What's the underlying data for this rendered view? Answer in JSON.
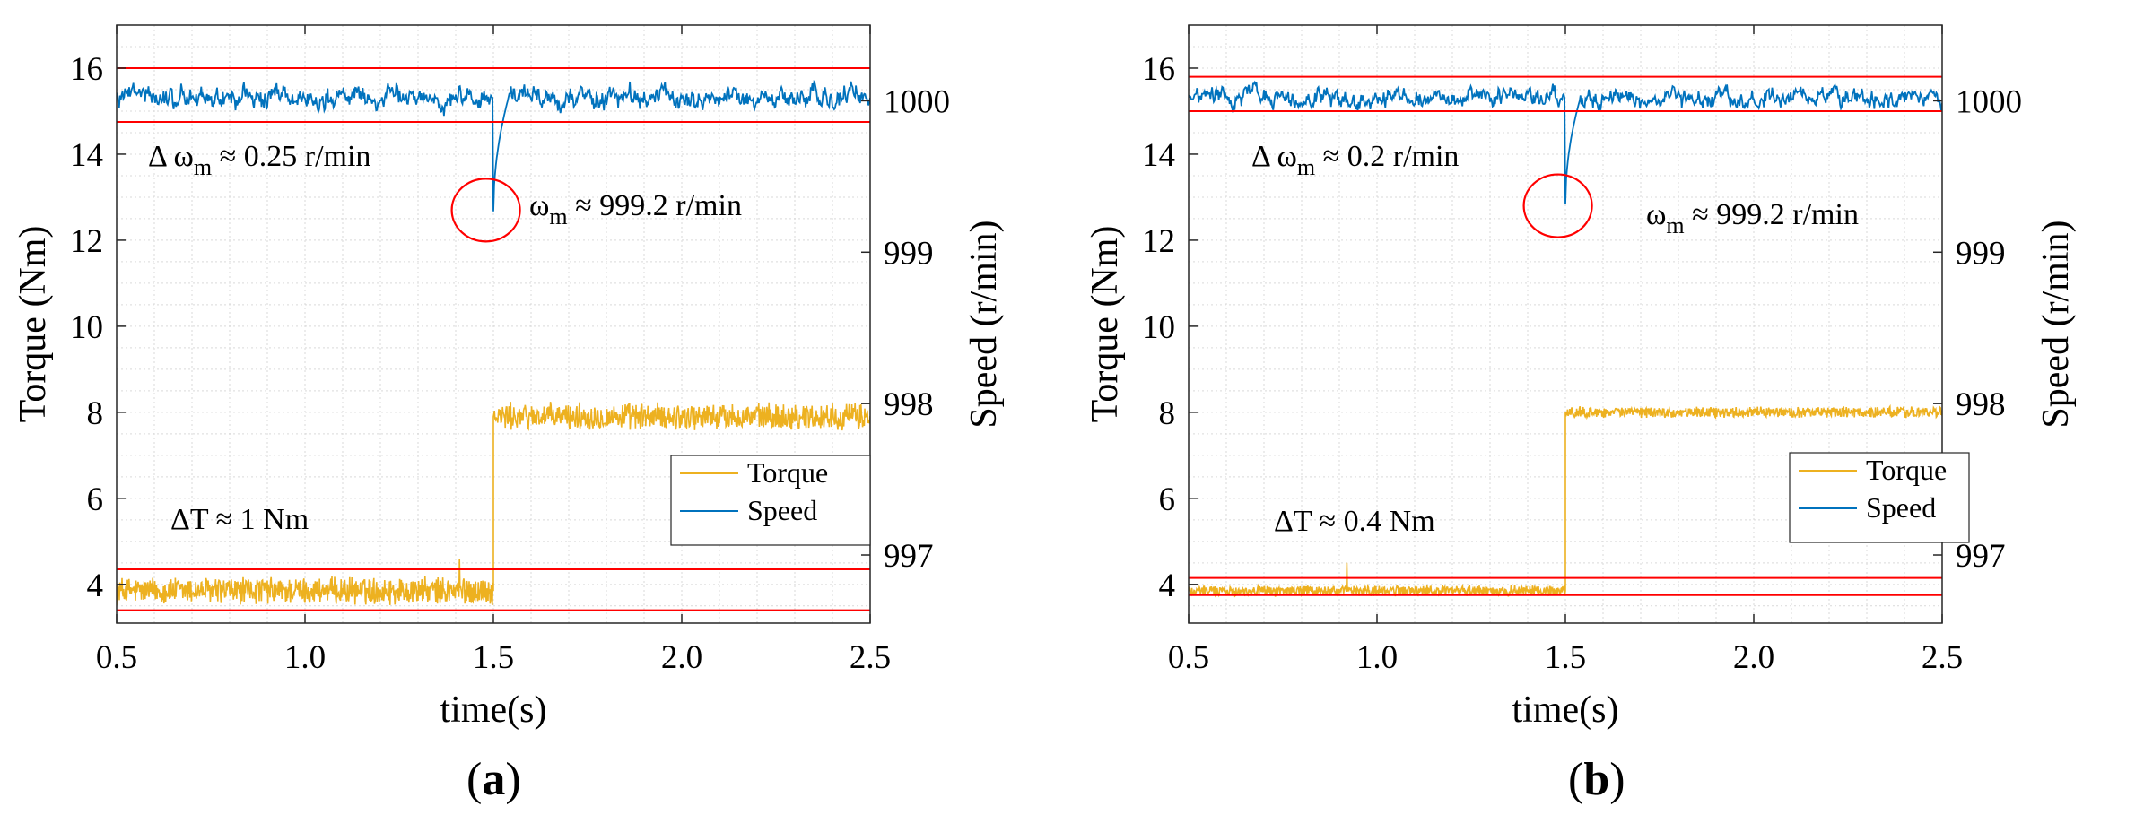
{
  "chart_data": [
    {
      "id": "a",
      "type": "line",
      "panel_label": "a",
      "xlabel": "time(s)",
      "ylabel_left": "Torque (Nm)",
      "ylabel_right": "Speed (r/min)",
      "xlim": [
        0.5,
        2.5
      ],
      "ylim_left": [
        3.1,
        17.0
      ],
      "ylim_right": [
        996.55,
        1000.5
      ],
      "xticks": [
        "0.5",
        "1.0",
        "1.5",
        "2.0",
        "2.5"
      ],
      "yticks_left": [
        "4",
        "6",
        "8",
        "10",
        "12",
        "14",
        "16"
      ],
      "yticks_right": [
        "997",
        "998",
        "999",
        "1000"
      ],
      "grid": true,
      "legend_position": "lower-right",
      "legend": [
        "Torque",
        "Speed"
      ],
      "colors": {
        "torque": "#EDB120",
        "speed": "#0072BD",
        "reference": "#FF0000"
      },
      "series": [
        {
          "name": "Torque",
          "axis": "left",
          "step_time": 1.5,
          "before_mean": 3.85,
          "after_mean": 7.9,
          "ripple_before": 0.5,
          "ripple_after": 0.5,
          "spike": {
            "x": 1.41,
            "y": 4.6
          }
        },
        {
          "name": "Speed",
          "axis": "right",
          "mean": 1000.02,
          "ripple": 0.25,
          "dip": {
            "x": 1.5,
            "y": 999.27
          }
        }
      ],
      "reference_lines": [
        {
          "axis": "left",
          "y": 16.0
        },
        {
          "axis": "left",
          "y": 14.75
        },
        {
          "axis": "left",
          "y": 4.35
        },
        {
          "axis": "left",
          "y": 3.4
        }
      ],
      "ellipse": {
        "x": 1.48,
        "y": 12.7
      },
      "annotations": {
        "delta_w_prefix": "Δ ω",
        "delta_w_sub": "m",
        "delta_w_value": " ≈ 0.25 r/min",
        "w_prefix": "ω",
        "w_sub": "m",
        "w_value": " ≈ 999.2 r/min",
        "delta_t": "ΔT ≈ 1 Nm"
      }
    },
    {
      "id": "b",
      "type": "line",
      "panel_label": "b",
      "xlabel": "time(s)",
      "ylabel_left": "Torque (Nm)",
      "ylabel_right": "Speed (r/min)",
      "xlim": [
        0.5,
        2.5
      ],
      "ylim_left": [
        3.1,
        17.0
      ],
      "ylim_right": [
        996.55,
        1000.5
      ],
      "xticks": [
        "0.5",
        "1.0",
        "1.5",
        "2.0",
        "2.5"
      ],
      "yticks_left": [
        "4",
        "6",
        "8",
        "10",
        "12",
        "14",
        "16"
      ],
      "yticks_right": [
        "997",
        "998",
        "999",
        "1000"
      ],
      "grid": true,
      "legend_position": "lower-right",
      "legend": [
        "Torque",
        "Speed"
      ],
      "colors": {
        "torque": "#EDB120",
        "speed": "#0072BD",
        "reference": "#FF0000"
      },
      "series": [
        {
          "name": "Torque",
          "axis": "left",
          "step_time": 1.5,
          "before_mean": 3.85,
          "after_mean": 8.0,
          "ripple_before": 0.2,
          "ripple_after": 0.2,
          "spike": {
            "x": 0.92,
            "y": 4.5
          }
        },
        {
          "name": "Speed",
          "axis": "right",
          "mean": 1000.02,
          "ripple": 0.2,
          "dip": {
            "x": 1.5,
            "y": 999.32
          }
        }
      ],
      "reference_lines": [
        {
          "axis": "left",
          "y": 15.8
        },
        {
          "axis": "left",
          "y": 15.0
        },
        {
          "axis": "left",
          "y": 4.15
        },
        {
          "axis": "left",
          "y": 3.75
        }
      ],
      "ellipse": {
        "x": 1.48,
        "y": 12.8
      },
      "annotations": {
        "delta_w_prefix": "Δ ω",
        "delta_w_sub": "m",
        "delta_w_value": " ≈ 0.2 r/min",
        "w_prefix": "ω",
        "w_sub": "m",
        "w_value": " ≈ 999.2 r/min",
        "delta_t": "ΔT ≈ 0.4 Nm"
      }
    }
  ]
}
